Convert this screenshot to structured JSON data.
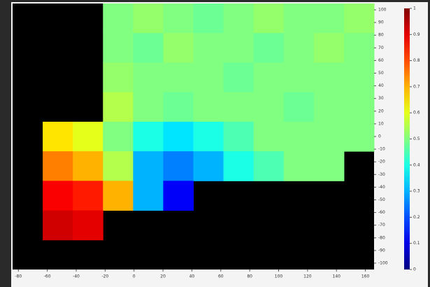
{
  "chart_data": {
    "type": "heatmap",
    "values": [
      [
        null,
        null,
        null,
        0.5,
        0.52,
        0.5,
        0.48,
        0.5,
        0.52,
        0.5,
        0.5,
        0.52
      ],
      [
        null,
        null,
        null,
        0.5,
        0.48,
        0.52,
        0.5,
        0.5,
        0.48,
        0.5,
        0.52,
        0.5
      ],
      [
        null,
        null,
        null,
        0.52,
        0.5,
        0.5,
        0.5,
        0.48,
        0.5,
        0.5,
        0.5,
        0.5
      ],
      [
        null,
        null,
        null,
        0.55,
        0.5,
        0.48,
        0.5,
        0.5,
        0.5,
        0.48,
        0.5,
        0.5
      ],
      [
        null,
        0.65,
        0.6,
        0.5,
        0.4,
        0.35,
        0.4,
        0.45,
        0.5,
        0.5,
        0.5,
        0.5
      ],
      [
        null,
        0.75,
        0.7,
        0.55,
        0.3,
        0.25,
        0.3,
        0.4,
        0.45,
        0.5,
        0.5,
        null
      ],
      [
        null,
        0.88,
        0.85,
        0.7,
        0.3,
        0.12,
        null,
        null,
        null,
        null,
        null,
        null
      ],
      [
        null,
        0.92,
        0.9,
        null,
        null,
        null,
        null,
        null,
        null,
        null,
        null,
        null
      ],
      [
        null,
        null,
        null,
        null,
        null,
        null,
        null,
        null,
        null,
        null,
        null,
        null
      ]
    ],
    "xlim": [
      -84,
      166
    ],
    "xticks": [
      -80,
      -60,
      -40,
      -20,
      0,
      20,
      40,
      60,
      80,
      100,
      120,
      140,
      160
    ],
    "ylim": [
      -105,
      105
    ],
    "yticks": [
      -100,
      -90,
      -80,
      -70,
      -60,
      -50,
      -40,
      -30,
      -20,
      -10,
      0,
      10,
      20,
      30,
      40,
      50,
      60,
      70,
      80,
      90,
      100
    ],
    "clim": [
      0,
      1
    ],
    "cticks": [
      0,
      0.1,
      0.2,
      0.3,
      0.4,
      0.5,
      0.6,
      0.7,
      0.8,
      0.9,
      1
    ],
    "colormap": "jet"
  }
}
